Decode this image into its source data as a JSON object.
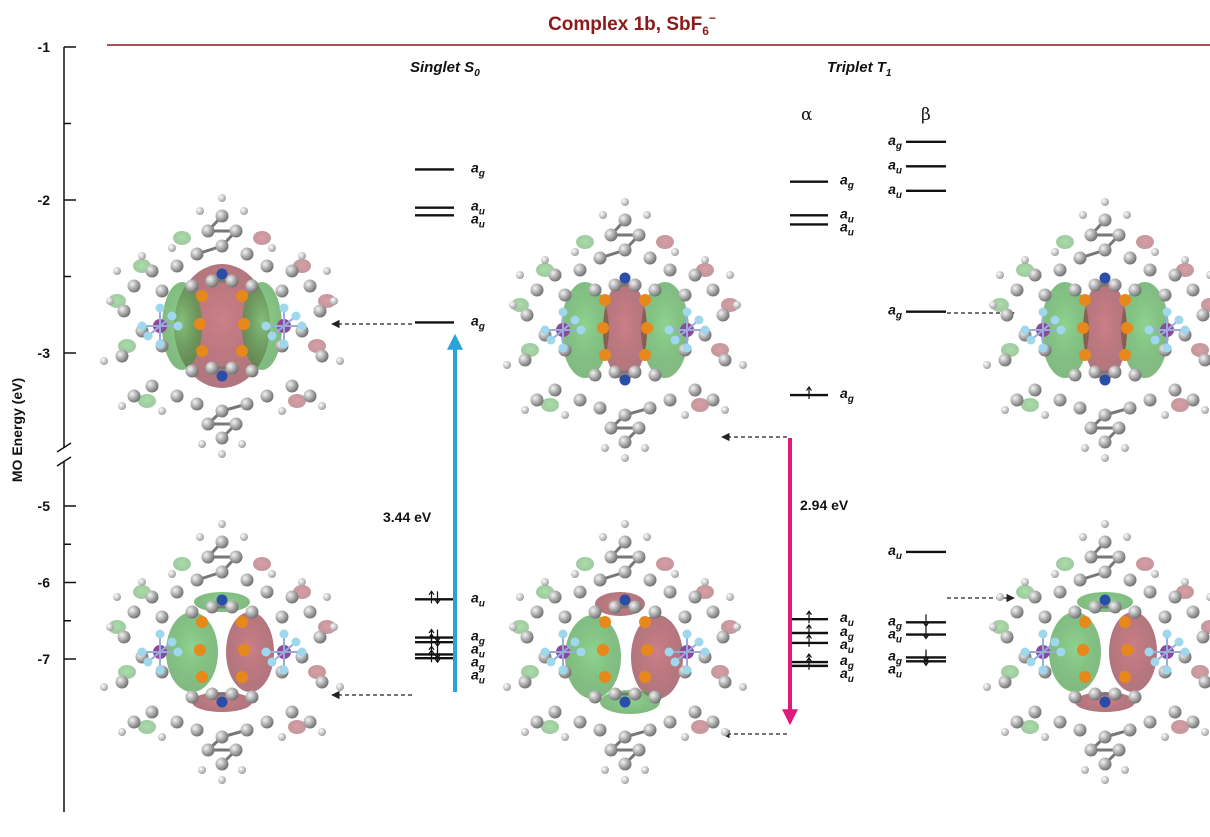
{
  "title": "Complex 1b, SbF6⁻",
  "title_main": "Complex 1b, SbF",
  "title_sub": "6",
  "title_sup": "−",
  "yaxis": {
    "label": "MO Energy (eV)",
    "ticks": [
      {
        "label": "-1",
        "value": -1
      },
      {
        "label": "-2",
        "value": -2
      },
      {
        "label": "-3",
        "value": -3
      },
      {
        "label": "-5",
        "value": -5
      },
      {
        "label": "-6",
        "value": -6
      },
      {
        "label": "-7",
        "value": -7
      }
    ]
  },
  "singlet": {
    "header_main": "Singlet S",
    "header_sub": "0",
    "levels": [
      {
        "sym": "g",
        "energy": -1.8
      },
      {
        "sym": "u",
        "energy": -2.05
      },
      {
        "sym": "u",
        "energy": -2.1
      },
      {
        "sym": "g",
        "energy": -2.8
      },
      {
        "sym": "u",
        "energy": -6.22,
        "occ": "paired"
      },
      {
        "sym": "g",
        "energy": -6.72,
        "occ": "paired"
      },
      {
        "sym": "u",
        "energy": -6.78,
        "occ": "paired"
      },
      {
        "sym": "g",
        "energy": -6.94,
        "occ": "paired"
      },
      {
        "sym": "u",
        "energy": -6.99,
        "occ": "paired"
      }
    ],
    "gap_label": "3.44 eV",
    "colors": {
      "arrow": "#29a3d8"
    }
  },
  "triplet": {
    "header_main": "Triplet T",
    "header_sub": "1",
    "alpha_label": "α",
    "beta_label": "β",
    "alpha_levels": [
      {
        "sym": "g",
        "energy": -1.88
      },
      {
        "sym": "u",
        "energy": -2.1
      },
      {
        "sym": "u",
        "energy": -2.16
      },
      {
        "sym": "g",
        "energy": -3.55,
        "occ": "up"
      },
      {
        "sym": "u",
        "energy": -6.48,
        "occ": "up"
      },
      {
        "sym": "g",
        "energy": -6.66,
        "occ": "up"
      },
      {
        "sym": "u",
        "energy": -6.79,
        "occ": "up"
      },
      {
        "sym": "g",
        "energy": -7.04,
        "occ": "up"
      },
      {
        "sym": "u",
        "energy": -7.09,
        "occ": "up"
      }
    ],
    "beta_levels": [
      {
        "sym": "g",
        "energy": -1.62
      },
      {
        "sym": "u",
        "energy": -1.78
      },
      {
        "sym": "u",
        "energy": -1.94
      },
      {
        "sym": "g",
        "energy": -2.73
      },
      {
        "sym": "u",
        "energy": -5.6
      },
      {
        "sym": "g",
        "energy": -6.52,
        "occ": "down"
      },
      {
        "sym": "u",
        "energy": -6.68,
        "occ": "down"
      },
      {
        "sym": "g",
        "energy": -6.98,
        "occ": "down"
      },
      {
        "sym": "u",
        "energy": -7.03,
        "occ": "down"
      }
    ],
    "gap_label": "2.94 eV",
    "colors": {
      "arrow": "#e0197d"
    }
  },
  "orbital_letter": "a",
  "colors": {
    "title": "#8b1a1a",
    "lobe_green": "#3a9a3a",
    "lobe_red": "#8c2030"
  }
}
